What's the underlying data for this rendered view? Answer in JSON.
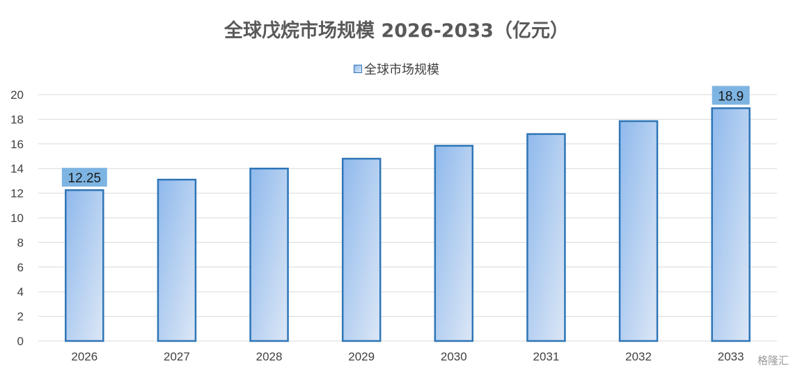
{
  "chart_data": {
    "type": "bar",
    "title": "全球戊烷市场规模 2026-2033（亿元）",
    "categories": [
      "2026",
      "2027",
      "2028",
      "2029",
      "2030",
      "2031",
      "2032",
      "2033"
    ],
    "series": [
      {
        "name": "全球市场规模",
        "values": [
          12.25,
          13.1,
          14.0,
          14.8,
          15.85,
          16.8,
          17.85,
          18.9
        ]
      }
    ],
    "data_labels": [
      {
        "category": "2026",
        "text": "12.25"
      },
      {
        "category": "2033",
        "text": "18.9"
      }
    ],
    "yticks": [
      "0",
      "2",
      "4",
      "6",
      "8",
      "10",
      "12",
      "14",
      "16",
      "18",
      "20"
    ],
    "ylim": [
      0,
      20
    ],
    "xlabel": "",
    "ylabel": "",
    "grid": true,
    "legend_position": "top",
    "colors": {
      "bar_border": "#2E75B6",
      "bar_fill_start": "#8FB9EC",
      "bar_fill_end": "#DCE7F6",
      "label_box": "#7DB4E2",
      "grid": "#D9D9D9"
    }
  },
  "watermark": "格隆汇"
}
